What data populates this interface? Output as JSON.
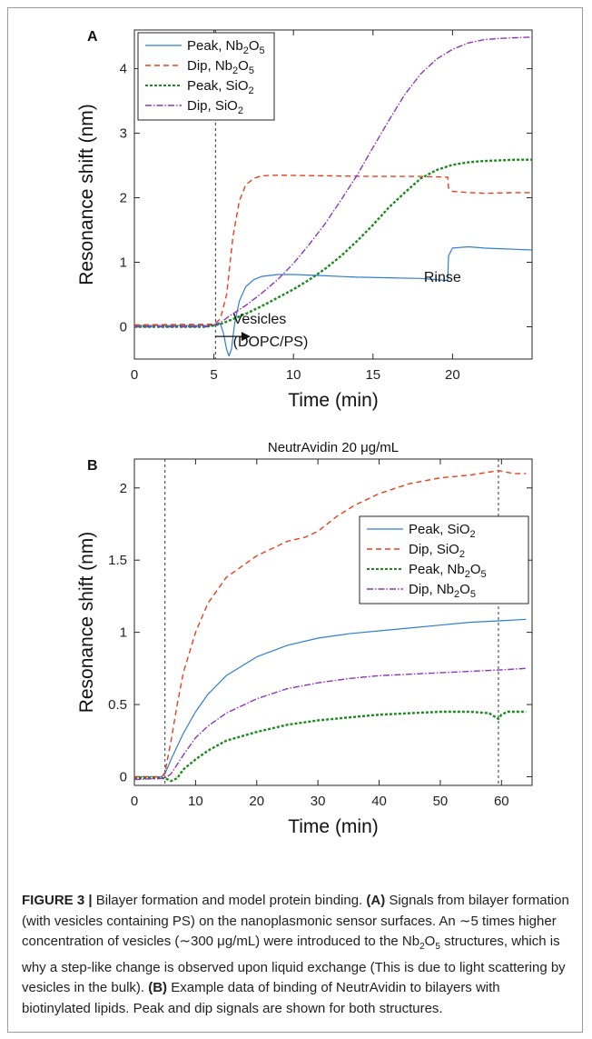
{
  "figure": {
    "caption_html": "<b>FIGURE 3 |</b> Bilayer formation and model protein binding. <b>(A)</b> Signals from bilayer formation (with vesicles containing PS) on the nanoplasmonic sensor surfaces. An ∼5 times higher concentration of vesicles (∼300 μg/mL) were introduced to the Nb<sub>2</sub>O<sub>5</sub> structures, which is why a step-like change is observed upon liquid exchange (This is due to light scattering by vesicles in the bulk). <b>(B)</b> Example data of binding of NeutrAvidin to bilayers with biotinylated lipids. Peak and dip signals are shown for both structures."
  },
  "chart_data": [
    {
      "panel": "A",
      "type": "line",
      "title": "",
      "xlabel": "Time (min)",
      "ylabel": "Resonance shift (nm)",
      "xlim": [
        0,
        25
      ],
      "ylim": [
        -0.5,
        4.6
      ],
      "xticks": [
        0,
        5,
        10,
        15,
        20
      ],
      "yticks": [
        0,
        1,
        2,
        3,
        4
      ],
      "grid": false,
      "legend_position": "top-left",
      "vlines": [
        5.1
      ],
      "annotations": [
        {
          "text": "Vesicles",
          "x": 6.2,
          "y": 0.05
        },
        {
          "text": "(DOPC/PS)",
          "x": 6.2,
          "y": -0.3
        },
        {
          "text": "Rinse",
          "x": 18.2,
          "y": 0.7
        }
      ],
      "series": [
        {
          "name": "Peak, Nb₂O₅",
          "html": "Peak, Nb<sub>2</sub>O<sub>5</sub>",
          "color": "#2f7fd0",
          "dash": "",
          "width": 1.2,
          "points": [
            [
              0,
              0.02
            ],
            [
              5.0,
              0.02
            ],
            [
              5.4,
              0.05
            ],
            [
              5.6,
              -0.1
            ],
            [
              5.8,
              -0.35
            ],
            [
              5.95,
              -0.45
            ],
            [
              6.1,
              -0.35
            ],
            [
              6.3,
              0.05
            ],
            [
              6.6,
              0.4
            ],
            [
              7.0,
              0.62
            ],
            [
              7.5,
              0.73
            ],
            [
              8.0,
              0.78
            ],
            [
              9.0,
              0.81
            ],
            [
              10.0,
              0.81
            ],
            [
              12.0,
              0.79
            ],
            [
              14.0,
              0.77
            ],
            [
              16.0,
              0.76
            ],
            [
              18.0,
              0.75
            ],
            [
              19.5,
              0.72
            ],
            [
              19.7,
              0.72
            ],
            [
              19.75,
              1.1
            ],
            [
              20.0,
              1.22
            ],
            [
              21.0,
              1.24
            ],
            [
              22.0,
              1.22
            ],
            [
              23.0,
              1.21
            ],
            [
              24.0,
              1.2
            ],
            [
              25.0,
              1.19
            ]
          ]
        },
        {
          "name": "Dip, Nb₂O₅",
          "html": "Dip, Nb<sub>2</sub>O<sub>5</sub>",
          "color": "#e8401c",
          "dash": "6,4",
          "width": 1.4,
          "points": [
            [
              0,
              0.03
            ],
            [
              5.0,
              0.04
            ],
            [
              5.4,
              0.12
            ],
            [
              5.8,
              0.5
            ],
            [
              6.2,
              1.4
            ],
            [
              6.6,
              1.95
            ],
            [
              7.0,
              2.2
            ],
            [
              7.5,
              2.3
            ],
            [
              8.0,
              2.34
            ],
            [
              9.0,
              2.35
            ],
            [
              12.0,
              2.34
            ],
            [
              15.0,
              2.33
            ],
            [
              18.0,
              2.33
            ],
            [
              19.6,
              2.32
            ],
            [
              19.7,
              2.32
            ],
            [
              19.75,
              2.15
            ],
            [
              20.0,
              2.1
            ],
            [
              21.0,
              2.08
            ],
            [
              22.0,
              2.07
            ],
            [
              24.0,
              2.08
            ],
            [
              25.0,
              2.08
            ]
          ]
        },
        {
          "name": "Peak, SiO₂",
          "html": "Peak, SiO<sub>2</sub>",
          "color": "#1d8a1d",
          "dash": "3,2",
          "width": 2.4,
          "points": [
            [
              0,
              0.0
            ],
            [
              4.5,
              0.0
            ],
            [
              5.0,
              0.02
            ],
            [
              5.5,
              0.05
            ],
            [
              6.0,
              0.1
            ],
            [
              7.0,
              0.2
            ],
            [
              8.0,
              0.32
            ],
            [
              9.0,
              0.45
            ],
            [
              10.0,
              0.58
            ],
            [
              11.0,
              0.73
            ],
            [
              12.0,
              0.9
            ],
            [
              13.0,
              1.1
            ],
            [
              14.0,
              1.33
            ],
            [
              15.0,
              1.58
            ],
            [
              16.0,
              1.85
            ],
            [
              17.0,
              2.08
            ],
            [
              18.0,
              2.3
            ],
            [
              19.0,
              2.43
            ],
            [
              20.0,
              2.51
            ],
            [
              21.0,
              2.55
            ],
            [
              22.0,
              2.57
            ],
            [
              23.0,
              2.58
            ],
            [
              24.0,
              2.59
            ],
            [
              25.0,
              2.59
            ]
          ]
        },
        {
          "name": "Dip, SiO₂",
          "html": "Dip, SiO<sub>2</sub>",
          "color": "#8e35c0",
          "dash": "7,2,1.5,2",
          "width": 1.4,
          "points": [
            [
              0,
              0.0
            ],
            [
              4.5,
              0.0
            ],
            [
              5.0,
              0.03
            ],
            [
              5.5,
              0.08
            ],
            [
              6.0,
              0.17
            ],
            [
              7.0,
              0.33
            ],
            [
              8.0,
              0.52
            ],
            [
              9.0,
              0.73
            ],
            [
              10.0,
              0.98
            ],
            [
              11.0,
              1.28
            ],
            [
              12.0,
              1.6
            ],
            [
              13.0,
              1.97
            ],
            [
              14.0,
              2.35
            ],
            [
              15.0,
              2.78
            ],
            [
              16.0,
              3.2
            ],
            [
              17.0,
              3.6
            ],
            [
              18.0,
              3.92
            ],
            [
              19.0,
              4.15
            ],
            [
              20.0,
              4.3
            ],
            [
              21.0,
              4.4
            ],
            [
              22.0,
              4.45
            ],
            [
              23.0,
              4.47
            ],
            [
              24.0,
              4.48
            ],
            [
              25.0,
              4.49
            ]
          ]
        }
      ]
    },
    {
      "panel": "B",
      "type": "line",
      "title": "NeutrAvidin  20 μg/mL",
      "xlabel": "Time (min)",
      "ylabel": "Resonance shift (nm)",
      "xlim": [
        0,
        65
      ],
      "ylim": [
        -0.06,
        2.2
      ],
      "xticks": [
        0,
        10,
        20,
        30,
        40,
        50,
        60
      ],
      "yticks": [
        0,
        0.5,
        1,
        1.5,
        2
      ],
      "grid": false,
      "legend_position": "right",
      "vlines": [
        5.0,
        59.5
      ],
      "annotations": [],
      "series": [
        {
          "name": "Peak, SiO₂",
          "html": "Peak, SiO<sub>2</sub>",
          "color": "#2f7fd0",
          "dash": "",
          "width": 1.2,
          "points": [
            [
              0,
              0.0
            ],
            [
              4.5,
              0.0
            ],
            [
              5.0,
              0.02
            ],
            [
              6.0,
              0.12
            ],
            [
              8.0,
              0.3
            ],
            [
              10.0,
              0.45
            ],
            [
              12.0,
              0.57
            ],
            [
              15.0,
              0.7
            ],
            [
              20.0,
              0.83
            ],
            [
              25.0,
              0.91
            ],
            [
              30.0,
              0.96
            ],
            [
              35.0,
              0.99
            ],
            [
              40.0,
              1.01
            ],
            [
              45.0,
              1.03
            ],
            [
              50.0,
              1.05
            ],
            [
              55.0,
              1.07
            ],
            [
              60.0,
              1.08
            ],
            [
              64.0,
              1.09
            ]
          ]
        },
        {
          "name": "Dip, SiO₂",
          "html": "Dip, SiO<sub>2</sub>",
          "color": "#e8401c",
          "dash": "6,4",
          "width": 1.4,
          "points": [
            [
              0,
              0.0
            ],
            [
              4.5,
              0.0
            ],
            [
              5.0,
              0.03
            ],
            [
              6.0,
              0.25
            ],
            [
              7.0,
              0.5
            ],
            [
              8.0,
              0.72
            ],
            [
              10.0,
              1.0
            ],
            [
              12.0,
              1.2
            ],
            [
              15.0,
              1.38
            ],
            [
              20.0,
              1.53
            ],
            [
              25.0,
              1.63
            ],
            [
              28.0,
              1.66
            ],
            [
              30.0,
              1.7
            ],
            [
              33.0,
              1.8
            ],
            [
              36.0,
              1.88
            ],
            [
              40.0,
              1.96
            ],
            [
              45.0,
              2.03
            ],
            [
              50.0,
              2.07
            ],
            [
              55.0,
              2.09
            ],
            [
              59.5,
              2.12
            ],
            [
              62.0,
              2.1
            ],
            [
              64.0,
              2.1
            ]
          ]
        },
        {
          "name": "Peak, Nb₂O₅",
          "html": "Peak, Nb<sub>2</sub>O<sub>5</sub>",
          "color": "#1d8a1d",
          "dash": "3,2",
          "width": 2.4,
          "points": [
            [
              0,
              -0.01
            ],
            [
              5.0,
              -0.01
            ],
            [
              6.0,
              -0.03
            ],
            [
              7.0,
              -0.01
            ],
            [
              8.0,
              0.05
            ],
            [
              10.0,
              0.12
            ],
            [
              12.0,
              0.18
            ],
            [
              15.0,
              0.25
            ],
            [
              20.0,
              0.31
            ],
            [
              25.0,
              0.36
            ],
            [
              30.0,
              0.39
            ],
            [
              35.0,
              0.41
            ],
            [
              40.0,
              0.43
            ],
            [
              45.0,
              0.44
            ],
            [
              50.0,
              0.45
            ],
            [
              55.0,
              0.45
            ],
            [
              58.0,
              0.44
            ],
            [
              59.5,
              0.4
            ],
            [
              60.0,
              0.43
            ],
            [
              61.0,
              0.45
            ],
            [
              64.0,
              0.45
            ]
          ]
        },
        {
          "name": "Dip, Nb₂O₅",
          "html": "Dip, Nb<sub>2</sub>O<sub>5</sub>",
          "color": "#8e35c0",
          "dash": "7,2,1.5,2",
          "width": 1.4,
          "points": [
            [
              0,
              -0.02
            ],
            [
              5.0,
              -0.01
            ],
            [
              6.0,
              0.02
            ],
            [
              8.0,
              0.15
            ],
            [
              10.0,
              0.27
            ],
            [
              12.0,
              0.35
            ],
            [
              15.0,
              0.44
            ],
            [
              20.0,
              0.54
            ],
            [
              25.0,
              0.61
            ],
            [
              30.0,
              0.65
            ],
            [
              35.0,
              0.68
            ],
            [
              40.0,
              0.7
            ],
            [
              45.0,
              0.71
            ],
            [
              50.0,
              0.72
            ],
            [
              55.0,
              0.73
            ],
            [
              60.0,
              0.74
            ],
            [
              64.0,
              0.75
            ]
          ]
        }
      ]
    }
  ]
}
